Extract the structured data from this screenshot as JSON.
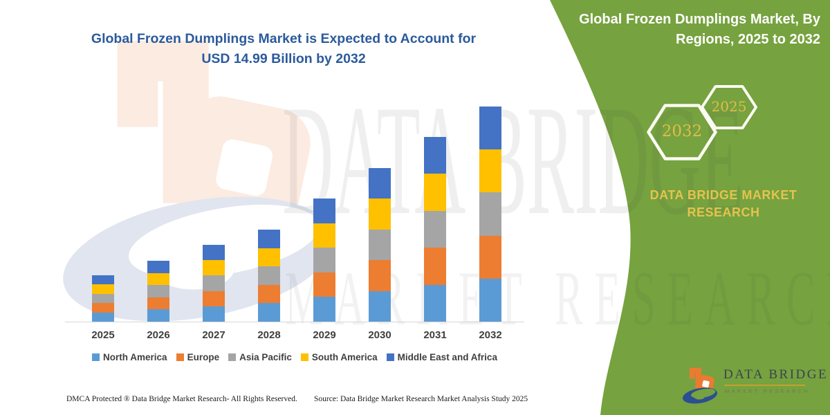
{
  "header": {
    "title_line1": "Global Frozen Dumplings Market is Expected to Account for",
    "title_line2": "USD 14.99 Billion by 2032"
  },
  "side_panel": {
    "background_color": "#76A23F",
    "title_line1": "Global Frozen Dumplings Market, By",
    "title_line2": "Regions, 2025 to 2032",
    "hexagon_back_year": "2032",
    "hexagon_front_year": "2025",
    "brand_line1": "DATA BRIDGE MARKET",
    "brand_line2": "RESEARCH",
    "gold_text_color": "#E0BC49"
  },
  "watermark": {
    "line1": "DATA BRIDGE",
    "line2": "MARKET RESEARCH"
  },
  "chart_data": {
    "type": "bar",
    "stacked": true,
    "title": "Global Frozen Dumplings Market is Expected to Account for USD 14.99 Billion by 2032",
    "unit": "USD Billion",
    "categories": [
      "2025",
      "2026",
      "2027",
      "2028",
      "2029",
      "2030",
      "2031",
      "2032"
    ],
    "totals": [
      3.22,
      4.25,
      5.35,
      6.41,
      8.59,
      10.7,
      12.86,
      14.99
    ],
    "series": [
      {
        "name": "North America",
        "color": "#5B9BD5",
        "values": [
          0.644,
          0.85,
          1.07,
          1.282,
          1.718,
          2.14,
          2.572,
          2.998
        ]
      },
      {
        "name": "Europe",
        "color": "#ED7D31",
        "values": [
          0.644,
          0.85,
          1.07,
          1.282,
          1.718,
          2.14,
          2.572,
          2.998
        ]
      },
      {
        "name": "Asia Pacific",
        "color": "#A5A5A5",
        "values": [
          0.644,
          0.85,
          1.07,
          1.282,
          1.718,
          2.14,
          2.572,
          2.998
        ]
      },
      {
        "name": "South America",
        "color": "#FFC000",
        "values": [
          0.644,
          0.85,
          1.07,
          1.282,
          1.718,
          2.14,
          2.572,
          2.998
        ]
      },
      {
        "name": "Middle East and Africa",
        "color": "#4472C4",
        "values": [
          0.644,
          0.85,
          1.07,
          1.282,
          1.718,
          2.14,
          2.572,
          2.998
        ]
      }
    ],
    "ylim": [
      0,
      15
    ],
    "grid": false,
    "y_axis_visible": false,
    "legend_position": "bottom"
  },
  "footer": {
    "dmca": "DMCA Protected ® Data Bridge Market Research-  All Rights Reserved.",
    "source": "Source: Data Bridge Market Research  Market Analysis Study 2025"
  },
  "logo": {
    "name": "DATA BRIDGE",
    "subtitle": "MARKET RESEARCH",
    "orange": "#EB7B30",
    "blue": "#2C4E93"
  }
}
